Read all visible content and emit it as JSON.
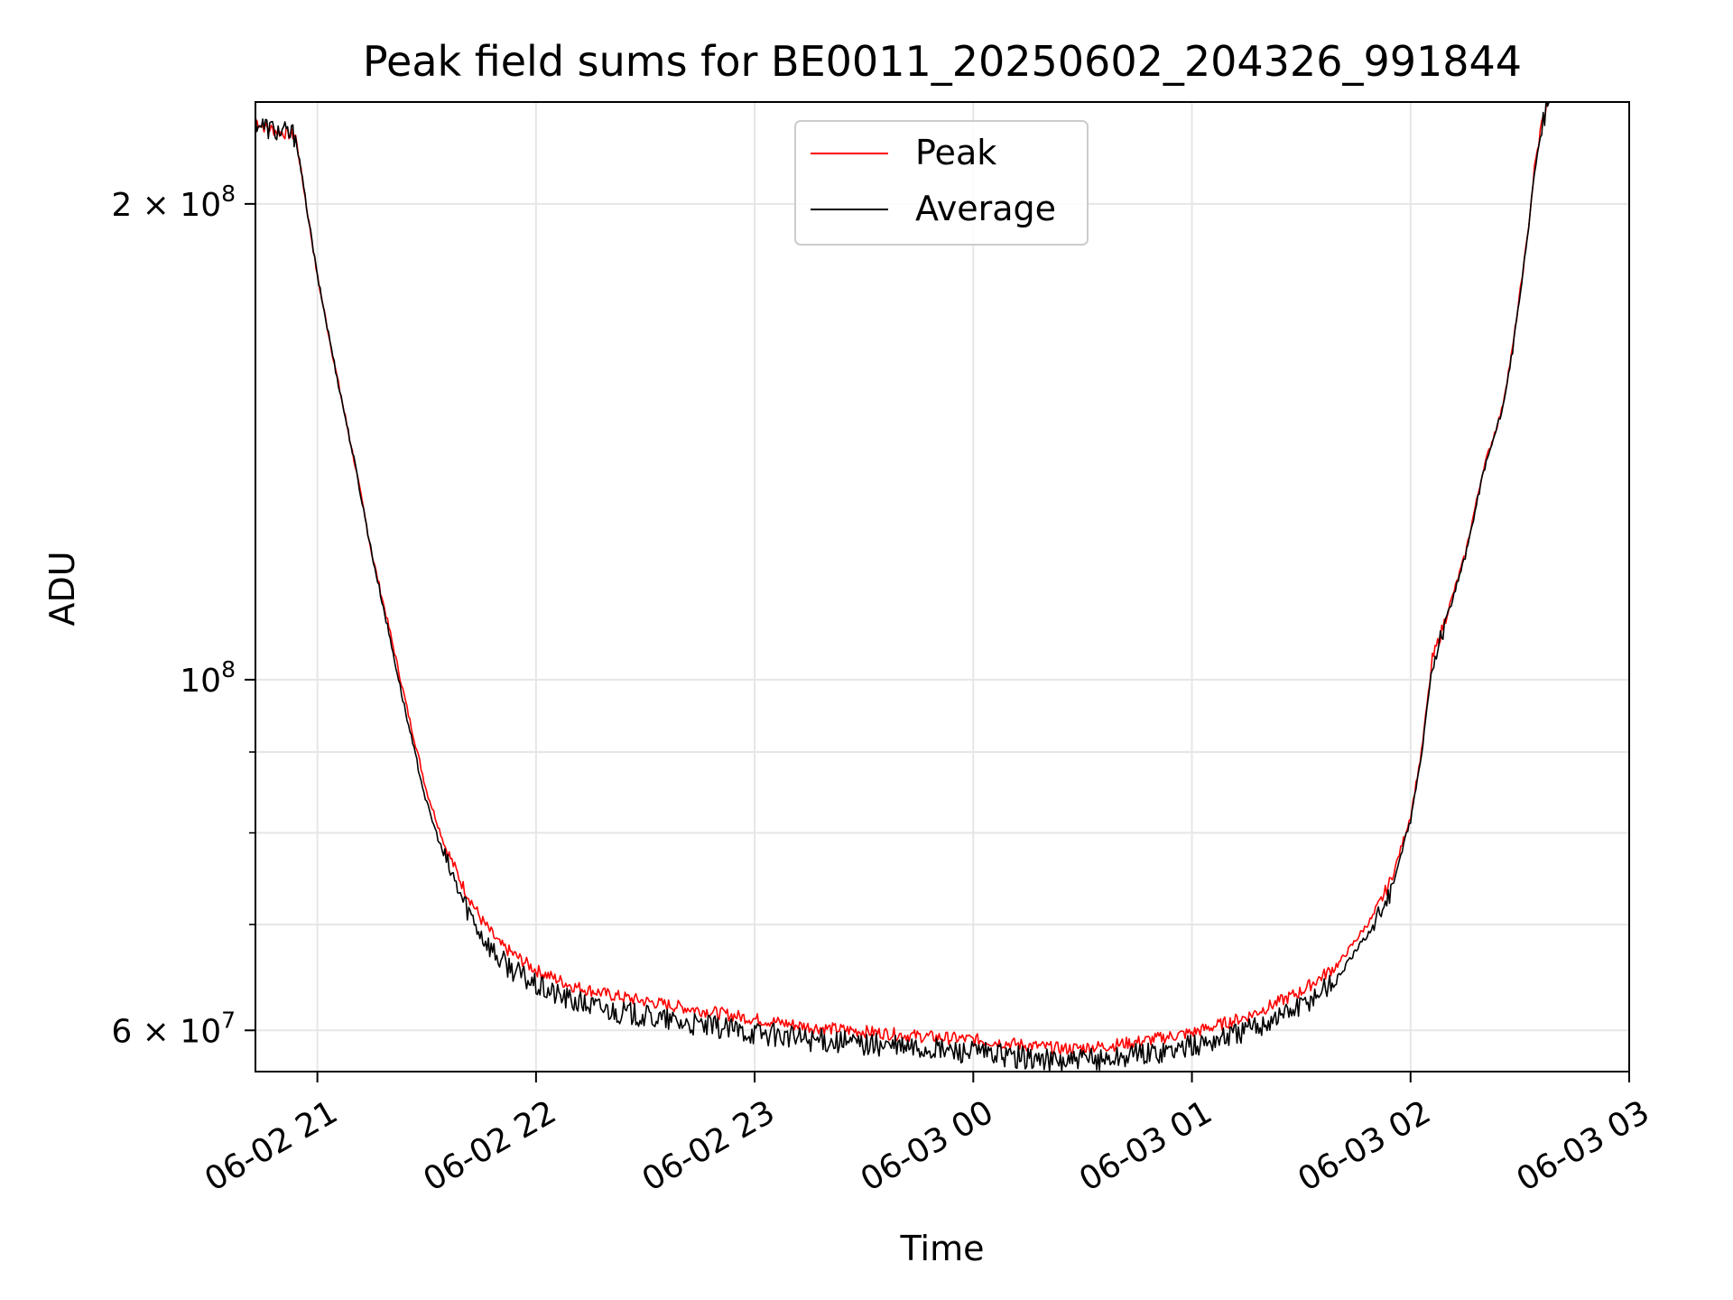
{
  "chart_data": {
    "type": "line",
    "title": "Peak field sums for BE0011_20250602_204326_991844",
    "xlabel": "Time",
    "ylabel": "ADU",
    "yscale": "log",
    "grid": true,
    "legend_position": "upper center",
    "xlim": [
      "2025-06-02 20:43",
      "2025-06-03 03:00"
    ],
    "ylim": [
      56500000,
      232000000
    ],
    "x_ticks": [
      {
        "value": "2025-06-02 21:00",
        "label": "06-02 21"
      },
      {
        "value": "2025-06-02 22:00",
        "label": "06-02 22"
      },
      {
        "value": "2025-06-02 23:00",
        "label": "06-02 23"
      },
      {
        "value": "2025-06-03 00:00",
        "label": "06-03 00"
      },
      {
        "value": "2025-06-03 01:00",
        "label": "06-03 01"
      },
      {
        "value": "2025-06-03 02:00",
        "label": "06-03 02"
      },
      {
        "value": "2025-06-03 03:00",
        "label": "06-03 03"
      }
    ],
    "y_major_ticks": [
      {
        "value": 200000000,
        "base": "2 × 10",
        "exp": "8"
      },
      {
        "value": 100000000,
        "base": "10",
        "exp": "8"
      },
      {
        "value": 60000000,
        "base": "6 × 10",
        "exp": "7"
      }
    ],
    "y_minor_ticks": [
      70000000,
      80000000,
      90000000
    ],
    "series": [
      {
        "name": "Peak",
        "color": "#ff0000",
        "points": [
          [
            "2025-06-02 20:43",
            226000000
          ],
          [
            "2025-06-02 20:45",
            224000000
          ],
          [
            "2025-06-02 20:50",
            222000000
          ],
          [
            "2025-06-02 20:54",
            221000000
          ],
          [
            "2025-06-02 21:00",
            180000000
          ],
          [
            "2025-06-02 21:05",
            157000000
          ],
          [
            "2025-06-02 21:10",
            138000000
          ],
          [
            "2025-06-02 21:15",
            120000000
          ],
          [
            "2025-06-02 21:20",
            107000000
          ],
          [
            "2025-06-02 21:25",
            95000000
          ],
          [
            "2025-06-02 21:30",
            85000000
          ],
          [
            "2025-06-02 21:35",
            78500000
          ],
          [
            "2025-06-02 21:40",
            74000000
          ],
          [
            "2025-06-02 21:45",
            70500000
          ],
          [
            "2025-06-02 21:50",
            68000000
          ],
          [
            "2025-06-02 22:00",
            65500000
          ],
          [
            "2025-06-02 22:10",
            64000000
          ],
          [
            "2025-06-02 22:20",
            63200000
          ],
          [
            "2025-06-02 22:30",
            62600000
          ],
          [
            "2025-06-02 22:45",
            61800000
          ],
          [
            "2025-06-02 23:00",
            61000000
          ],
          [
            "2025-06-02 23:15",
            60300000
          ],
          [
            "2025-06-02 23:30",
            59900000
          ],
          [
            "2025-06-02 23:45",
            59500000
          ],
          [
            "2025-06-03 00:00",
            59200000
          ],
          [
            "2025-06-03 00:15",
            58700000
          ],
          [
            "2025-06-03 00:25",
            58400000
          ],
          [
            "2025-06-03 00:35",
            58600000
          ],
          [
            "2025-06-03 00:45",
            59000000
          ],
          [
            "2025-06-03 01:00",
            59800000
          ],
          [
            "2025-06-03 01:15",
            61200000
          ],
          [
            "2025-06-03 01:30",
            63500000
          ],
          [
            "2025-06-03 01:40",
            66000000
          ],
          [
            "2025-06-03 01:50",
            71000000
          ],
          [
            "2025-06-03 01:55",
            75000000
          ],
          [
            "2025-06-03 02:00",
            82000000
          ],
          [
            "2025-06-03 02:03",
            90000000
          ],
          [
            "2025-06-03 02:06",
            103000000
          ],
          [
            "2025-06-03 02:10",
            110000000
          ],
          [
            "2025-06-03 02:15",
            120000000
          ],
          [
            "2025-06-03 02:20",
            136000000
          ],
          [
            "2025-06-03 02:25",
            148000000
          ],
          [
            "2025-06-03 02:28",
            162000000
          ],
          [
            "2025-06-03 02:32",
            190000000
          ],
          [
            "2025-06-03 02:34",
            210000000
          ],
          [
            "2025-06-03 02:36",
            225000000
          ],
          [
            "2025-06-03 02:38",
            232000000
          ]
        ]
      },
      {
        "name": "Average",
        "color": "#000000",
        "points": [
          [
            "2025-06-02 20:43",
            226000000
          ],
          [
            "2025-06-02 20:45",
            224000000
          ],
          [
            "2025-06-02 20:50",
            222000000
          ],
          [
            "2025-06-02 20:54",
            221000000
          ],
          [
            "2025-06-02 21:00",
            180000000
          ],
          [
            "2025-06-02 21:05",
            157000000
          ],
          [
            "2025-06-02 21:10",
            138000000
          ],
          [
            "2025-06-02 21:15",
            120000000
          ],
          [
            "2025-06-02 21:20",
            106000000
          ],
          [
            "2025-06-02 21:25",
            93500000
          ],
          [
            "2025-06-02 21:30",
            83500000
          ],
          [
            "2025-06-02 21:35",
            77000000
          ],
          [
            "2025-06-02 21:40",
            72500000
          ],
          [
            "2025-06-02 21:45",
            69000000
          ],
          [
            "2025-06-02 21:50",
            66500000
          ],
          [
            "2025-06-02 22:00",
            64000000
          ],
          [
            "2025-06-02 22:10",
            62600000
          ],
          [
            "2025-06-02 22:20",
            61800000
          ],
          [
            "2025-06-02 22:30",
            61200000
          ],
          [
            "2025-06-02 22:45",
            60400000
          ],
          [
            "2025-06-02 23:00",
            59800000
          ],
          [
            "2025-06-02 23:15",
            59200000
          ],
          [
            "2025-06-02 23:30",
            58800000
          ],
          [
            "2025-06-02 23:45",
            58400000
          ],
          [
            "2025-06-03 00:00",
            58100000
          ],
          [
            "2025-06-03 00:15",
            57600000
          ],
          [
            "2025-06-03 00:25",
            57300000
          ],
          [
            "2025-06-03 00:35",
            57500000
          ],
          [
            "2025-06-03 00:45",
            57900000
          ],
          [
            "2025-06-03 01:00",
            58600000
          ],
          [
            "2025-06-03 01:15",
            60000000
          ],
          [
            "2025-06-03 01:30",
            62200000
          ],
          [
            "2025-06-03 01:40",
            64800000
          ],
          [
            "2025-06-03 01:50",
            70000000
          ],
          [
            "2025-06-03 01:55",
            74000000
          ],
          [
            "2025-06-03 02:00",
            81500000
          ],
          [
            "2025-06-03 02:03",
            89500000
          ],
          [
            "2025-06-03 02:06",
            102500000
          ],
          [
            "2025-06-03 02:10",
            109500000
          ],
          [
            "2025-06-03 02:15",
            119500000
          ],
          [
            "2025-06-03 02:20",
            135500000
          ],
          [
            "2025-06-03 02:25",
            147500000
          ],
          [
            "2025-06-03 02:28",
            161500000
          ],
          [
            "2025-06-03 02:32",
            189500000
          ],
          [
            "2025-06-03 02:34",
            209500000
          ],
          [
            "2025-06-03 02:36",
            224500000
          ],
          [
            "2025-06-03 02:38",
            232000000
          ]
        ]
      }
    ]
  }
}
